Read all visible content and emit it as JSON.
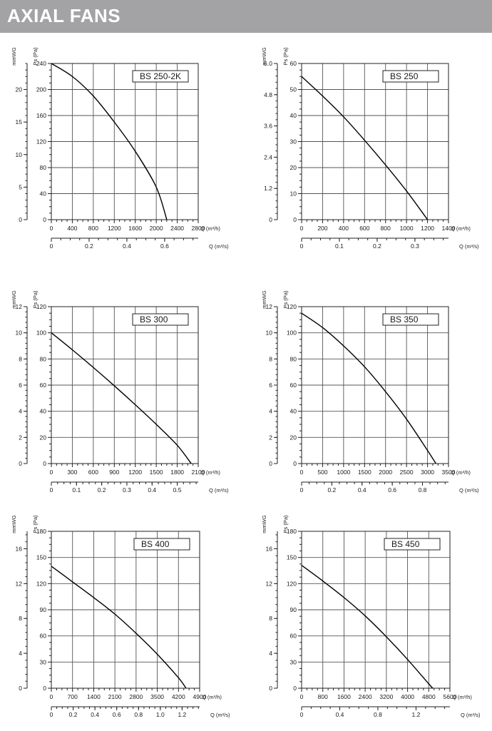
{
  "header": {
    "title": "AXIAL FANS",
    "color": "#a3a3a5"
  },
  "chart_data": [
    {
      "type": "line",
      "model": "BS 250-2K",
      "ylabel": "Ps (Pa)",
      "ylabel2": "mmWG",
      "xlabel": "Q (m³/h)",
      "xlabel2": "Q (m³/s)",
      "xlim": [
        0,
        2800
      ],
      "ylim": [
        0,
        240
      ],
      "x_ticks": [
        "0",
        "400",
        "800",
        "1200",
        "1600",
        "2000",
        "2400",
        "2800"
      ],
      "y_ticks": [
        "0",
        "40",
        "80",
        "120",
        "160",
        "200",
        "240"
      ],
      "y2_ticks": [
        {
          "v": 0,
          "l": "0"
        },
        {
          "v": 5,
          "l": "5"
        },
        {
          "v": 10,
          "l": "10"
        },
        {
          "v": 15,
          "l": "15"
        },
        {
          "v": 20,
          "l": "20"
        }
      ],
      "y2_max": 24,
      "x2_ticks": [
        {
          "v": 0,
          "l": "0"
        },
        {
          "v": 0.2,
          "l": "0.2"
        },
        {
          "v": 0.4,
          "l": "0.4"
        },
        {
          "v": 0.6,
          "l": "0.6"
        }
      ],
      "x2_max": 0.7778,
      "x2_minor": 0.05,
      "x": [
        0,
        400,
        800,
        1200,
        1600,
        2000,
        2200
      ],
      "y": [
        240,
        220,
        190,
        150,
        105,
        50,
        0
      ]
    },
    {
      "type": "line",
      "model": "BS 250",
      "ylabel": "Ps (Pa)",
      "ylabel2": "mmWG",
      "xlabel": "Q (m³/h)",
      "xlabel2": "Q (m³/s)",
      "xlim": [
        0,
        1400
      ],
      "ylim": [
        0,
        60
      ],
      "x_ticks": [
        "0",
        "200",
        "400",
        "600",
        "800",
        "1000",
        "1200",
        "1400"
      ],
      "y_ticks": [
        "0",
        "10",
        "20",
        "30",
        "40",
        "50",
        "60"
      ],
      "y2_ticks": [
        {
          "v": 0,
          "l": "0"
        },
        {
          "v": 1.2,
          "l": "1.2"
        },
        {
          "v": 2.4,
          "l": "2.4"
        },
        {
          "v": 3.6,
          "l": "3.6"
        },
        {
          "v": 4.8,
          "l": "4.8"
        },
        {
          "v": 6.0,
          "l": "6.0"
        }
      ],
      "y2_max": 6.0,
      "x2_ticks": [
        {
          "v": 0,
          "l": "0"
        },
        {
          "v": 0.1,
          "l": "0.1"
        },
        {
          "v": 0.2,
          "l": "0.2"
        },
        {
          "v": 0.3,
          "l": "0.3"
        }
      ],
      "x2_max": 0.3889,
      "x2_minor": 0.025,
      "x": [
        0,
        200,
        400,
        600,
        800,
        1000,
        1200
      ],
      "y": [
        55,
        47.5,
        39.5,
        30.5,
        21,
        11,
        0
      ]
    },
    {
      "type": "line",
      "model": "BS 300",
      "ylabel": "Ps (Pa)",
      "ylabel2": "mmWG",
      "xlabel": "Q (m³/h)",
      "xlabel2": "Q (m³/s)",
      "xlim": [
        0,
        2100
      ],
      "ylim": [
        0,
        120
      ],
      "x_ticks": [
        "0",
        "300",
        "600",
        "900",
        "1200",
        "1500",
        "1800",
        "2100"
      ],
      "y_ticks": [
        "0",
        "20",
        "40",
        "60",
        "80",
        "100",
        "120"
      ],
      "y2_ticks": [
        {
          "v": 0,
          "l": "0"
        },
        {
          "v": 2,
          "l": "2"
        },
        {
          "v": 4,
          "l": "4"
        },
        {
          "v": 6,
          "l": "6"
        },
        {
          "v": 8,
          "l": "8"
        },
        {
          "v": 10,
          "l": "10"
        },
        {
          "v": 12,
          "l": "12"
        }
      ],
      "y2_max": 12,
      "x2_ticks": [
        {
          "v": 0,
          "l": "0"
        },
        {
          "v": 0.1,
          "l": "0.1"
        },
        {
          "v": 0.2,
          "l": "0.2"
        },
        {
          "v": 0.3,
          "l": "0.3"
        },
        {
          "v": 0.4,
          "l": "0.4"
        },
        {
          "v": 0.5,
          "l": "0.5"
        }
      ],
      "x2_max": 0.5833,
      "x2_minor": 0.025,
      "x": [
        0,
        300,
        600,
        900,
        1200,
        1500,
        1800,
        2000
      ],
      "y": [
        100,
        87,
        73.5,
        59.5,
        45,
        30,
        14,
        0
      ]
    },
    {
      "type": "line",
      "model": "BS 350",
      "ylabel": "Ps (Pa)",
      "ylabel2": "mmWG",
      "xlabel": "Q (m³/h)",
      "xlabel2": "Q (m³/s)",
      "xlim": [
        0,
        3500
      ],
      "ylim": [
        0,
        120
      ],
      "x_ticks": [
        "0",
        "500",
        "1000",
        "1500",
        "2000",
        "2500",
        "3000",
        "3500"
      ],
      "y_ticks": [
        "0",
        "20",
        "40",
        "60",
        "80",
        "100",
        "120"
      ],
      "y2_ticks": [
        {
          "v": 0,
          "l": "0"
        },
        {
          "v": 2,
          "l": "2"
        },
        {
          "v": 4,
          "l": "4"
        },
        {
          "v": 6,
          "l": "6"
        },
        {
          "v": 8,
          "l": "8"
        },
        {
          "v": 10,
          "l": "10"
        },
        {
          "v": 12,
          "l": "12"
        }
      ],
      "y2_max": 12,
      "x2_ticks": [
        {
          "v": 0,
          "l": "0"
        },
        {
          "v": 0.2,
          "l": "0.2"
        },
        {
          "v": 0.4,
          "l": "0.4"
        },
        {
          "v": 0.6,
          "l": "0.6"
        },
        {
          "v": 0.8,
          "l": "0.8"
        }
      ],
      "x2_max": 0.9722,
      "x2_minor": 0.05,
      "x": [
        0,
        500,
        1000,
        1500,
        2000,
        2500,
        3000,
        3200
      ],
      "y": [
        115,
        104,
        90,
        74,
        55,
        34,
        10,
        0
      ]
    },
    {
      "type": "line",
      "model": "BS 400",
      "ylabel": "Ps (Pa)",
      "ylabel2": "mmWG",
      "xlabel": "Q (m³/h)",
      "xlabel2": "Q (m³/s)",
      "xlim": [
        0,
        4900
      ],
      "ylim": [
        0,
        180
      ],
      "x_ticks": [
        "0",
        "700",
        "1400",
        "2100",
        "2800",
        "3500",
        "4200",
        "4900"
      ],
      "y_ticks": [
        "0",
        "30",
        "60",
        "90",
        "120",
        "150",
        "180"
      ],
      "y2_ticks": [
        {
          "v": 0,
          "l": "0"
        },
        {
          "v": 4,
          "l": "4"
        },
        {
          "v": 8,
          "l": "8"
        },
        {
          "v": 12,
          "l": "12"
        },
        {
          "v": 16,
          "l": "16"
        }
      ],
      "y2_max": 18,
      "x2_ticks": [
        {
          "v": 0,
          "l": "0"
        },
        {
          "v": 0.2,
          "l": "0.2"
        },
        {
          "v": 0.4,
          "l": "0.4"
        },
        {
          "v": 0.6,
          "l": "0.6"
        },
        {
          "v": 0.8,
          "l": "0.8"
        },
        {
          "v": 1.0,
          "l": "1.0"
        },
        {
          "v": 1.2,
          "l": "1.2"
        }
      ],
      "x2_max": 1.3611,
      "x2_minor": 0.05,
      "x": [
        0,
        700,
        1400,
        2100,
        2800,
        3500,
        4200,
        4450
      ],
      "y": [
        140,
        122,
        104,
        85,
        63,
        39,
        12,
        0
      ]
    },
    {
      "type": "line",
      "model": "BS 450",
      "ylabel": "Ps (Pa)",
      "ylabel2": "mmWG",
      "xlabel": "Q (m³/h)",
      "xlabel2": "Q (m³/s)",
      "xlim": [
        0,
        5600
      ],
      "ylim": [
        0,
        180
      ],
      "x_ticks": [
        "0",
        "800",
        "1600",
        "2400",
        "3200",
        "4000",
        "4800",
        "5600"
      ],
      "y_ticks": [
        "0",
        "30",
        "60",
        "90",
        "120",
        "150",
        "180"
      ],
      "y2_ticks": [
        {
          "v": 0,
          "l": "0"
        },
        {
          "v": 4,
          "l": "4"
        },
        {
          "v": 8,
          "l": "8"
        },
        {
          "v": 12,
          "l": "12"
        },
        {
          "v": 16,
          "l": "16"
        }
      ],
      "y2_max": 18,
      "x2_ticks": [
        {
          "v": 0,
          "l": "0"
        },
        {
          "v": 0.4,
          "l": "0.4"
        },
        {
          "v": 0.8,
          "l": "0.8"
        },
        {
          "v": 1.2,
          "l": "1.2"
        }
      ],
      "x2_max": 1.5556,
      "x2_minor": 0.1,
      "x": [
        0,
        800,
        1600,
        2400,
        3200,
        4000,
        4800,
        4950
      ],
      "y": [
        141,
        123,
        104,
        83,
        59,
        33,
        5,
        0
      ]
    }
  ]
}
